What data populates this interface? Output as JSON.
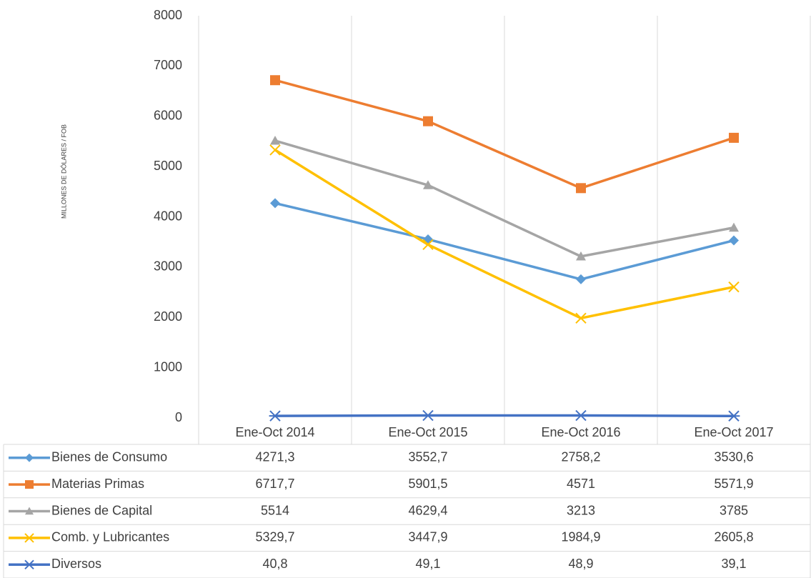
{
  "chart_data": {
    "type": "line",
    "y_axis_label": "MILLONES DE DÓLARES / FOB",
    "categories": [
      "Ene-Oct 2014",
      "Ene-Oct 2015",
      "Ene-Oct 2016",
      "Ene-Oct 2017"
    ],
    "ylim": [
      0,
      8000
    ],
    "yticks": [
      0,
      1000,
      2000,
      3000,
      4000,
      5000,
      6000,
      7000,
      8000
    ],
    "grid": "vertical",
    "series": [
      {
        "name": "Bienes de Consumo",
        "color": "#5b9bd5",
        "marker": "diamond",
        "values": [
          4271.3,
          3552.7,
          2758.2,
          3530.6
        ],
        "value_labels": [
          "4271,3",
          "3552,7",
          "2758,2",
          "3530,6"
        ]
      },
      {
        "name": "Materias Primas",
        "color": "#ed7d31",
        "marker": "square",
        "values": [
          6717.7,
          5901.5,
          4571,
          5571.9
        ],
        "value_labels": [
          "6717,7",
          "5901,5",
          "4571",
          "5571,9"
        ]
      },
      {
        "name": "Bienes de Capital",
        "color": "#a5a5a5",
        "marker": "triangle",
        "values": [
          5514,
          4629.4,
          3213,
          3785
        ],
        "value_labels": [
          "5514",
          "4629,4",
          "3213",
          "3785"
        ]
      },
      {
        "name": "Comb. y Lubricantes",
        "color": "#ffc000",
        "marker": "x",
        "values": [
          5329.7,
          3447.9,
          1984.9,
          2605.8
        ],
        "value_labels": [
          "5329,7",
          "3447,9",
          "1984,9",
          "2605,8"
        ]
      },
      {
        "name": "Diversos",
        "color": "#4472c4",
        "marker": "star",
        "values": [
          40.8,
          49.1,
          48.9,
          39.1
        ],
        "value_labels": [
          "40,8",
          "49,1",
          "48,9",
          "39,1"
        ]
      }
    ]
  }
}
